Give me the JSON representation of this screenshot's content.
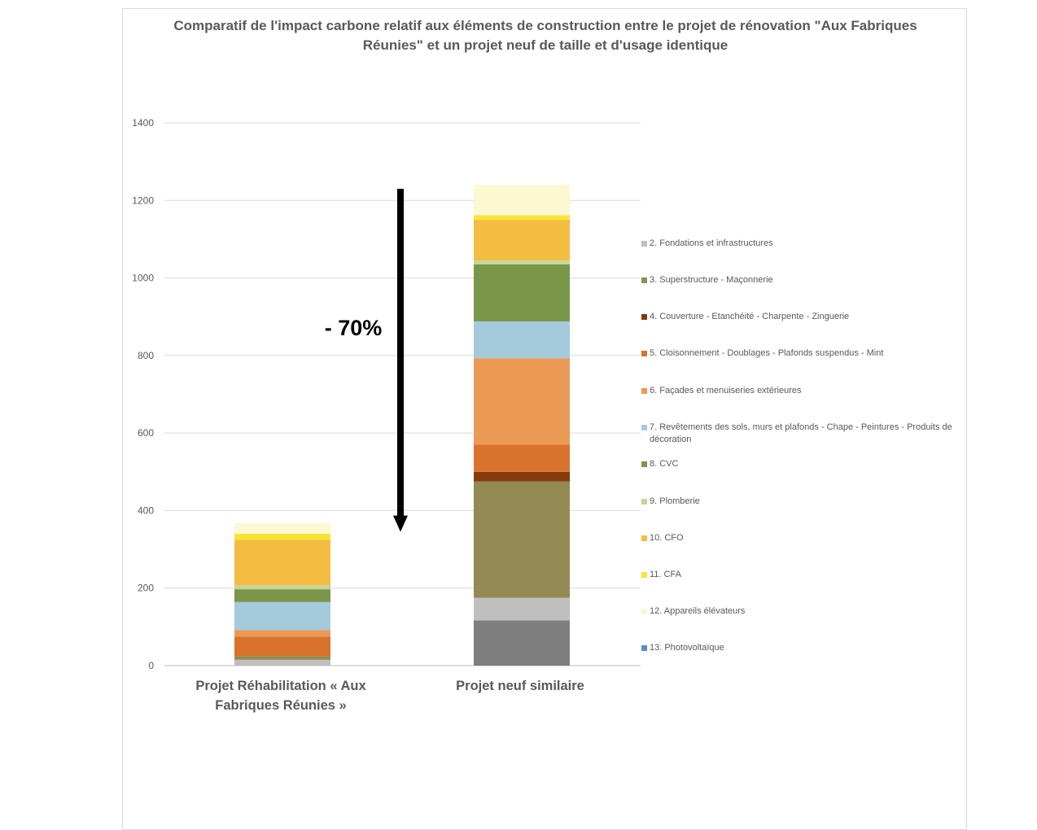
{
  "chart_data": {
    "type": "stacked-bar",
    "title": "Comparatif de l'impact carbone relatif aux éléments de construction entre le projet de rénovation \"Aux Fabriques Réunies\" et un projet neuf de taille et d'usage identique",
    "xlabel": "",
    "ylabel": "",
    "ylim": [
      0,
      1400
    ],
    "yticks": [
      0,
      200,
      400,
      600,
      800,
      1000,
      1200,
      1400
    ],
    "grid": true,
    "legend_position": "right",
    "categories": [
      "Projet Réhabilitation « Aux Fabriques Réunies »",
      "Projet neuf similaire"
    ],
    "category_lines": [
      [
        "Projet Réhabilitation « Aux",
        "Fabriques Réunies »"
      ],
      [
        "Projet neuf similaire"
      ]
    ],
    "series": [
      {
        "name": "",
        "color": "#7f7f7f",
        "values": [
          0,
          117
        ],
        "in_legend": false
      },
      {
        "name": "2. Fondations et infrastructures",
        "color": "#bfbfbf",
        "values": [
          15,
          58
        ],
        "in_legend": true
      },
      {
        "name": "3. Superstructure - Maçonnerie",
        "color": "#948a54",
        "values": [
          10,
          300
        ],
        "in_legend": true
      },
      {
        "name": "4. Couverture - Etanchéité - Charpente - Zinguerie",
        "color": "#843c0c",
        "values": [
          0,
          25
        ],
        "in_legend": true
      },
      {
        "name": "5. Cloisonnement - Doublages - Plafonds suspendus - Mint",
        "color": "#d9732b",
        "values": [
          50,
          70
        ],
        "in_legend": true
      },
      {
        "name": "6. Façades et menuiseries extérieures",
        "color": "#eb9a55",
        "values": [
          17,
          223
        ],
        "in_legend": true
      },
      {
        "name": "7. Revêtements des sols, murs et plafonds - Chape - Peintures - Produits de décoration",
        "color": "#a3cbdc",
        "values": [
          72,
          95
        ],
        "in_legend": true
      },
      {
        "name": "8. CVC",
        "color": "#7b9648",
        "values": [
          33,
          147
        ],
        "in_legend": true
      },
      {
        "name": "9. Plomberie",
        "color": "#c4d59c",
        "values": [
          10,
          10
        ],
        "in_legend": true
      },
      {
        "name": "10. CFO",
        "color": "#f4bd41",
        "values": [
          118,
          105
        ],
        "in_legend": true
      },
      {
        "name": "11. CFA",
        "color": "#f7e535",
        "values": [
          15,
          12
        ],
        "in_legend": true
      },
      {
        "name": "12. Appareils élévateurs",
        "color": "#fbf8d2",
        "values": [
          28,
          78
        ],
        "in_legend": true
      },
      {
        "name": "13. Photovoltaïque",
        "color": "#5b8ac8",
        "values": [
          0,
          0
        ],
        "in_legend": true
      }
    ],
    "annotation": {
      "text": "- 70%",
      "arrow_from": 1230,
      "arrow_to": 345
    }
  }
}
